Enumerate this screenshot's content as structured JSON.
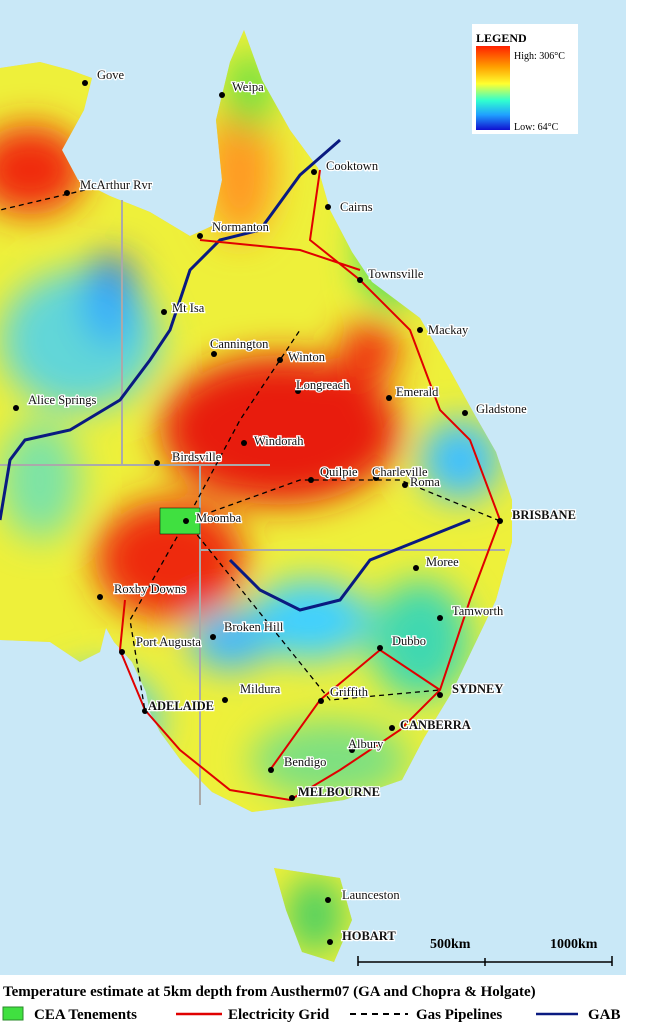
{
  "legend": {
    "title": "LEGEND",
    "high": "High: 306°C",
    "low": "Low: 64°C"
  },
  "cities": [
    "Gove",
    "Weipa",
    "McArthur Rvr",
    "Cooktown",
    "Cairns",
    "Normanton",
    "Townsville",
    "Mt Isa",
    "Mackay",
    "Cannington",
    "Winton",
    "Longreach",
    "Emerald",
    "Alice Springs",
    "Gladstone",
    "Windorah",
    "Birdsville",
    "Quilpie",
    "Charleville",
    "Roma",
    "Moomba",
    "BRISBANE",
    "Moree",
    "Roxby Downs",
    "Tamworth",
    "Broken Hill",
    "Port Augusta",
    "Dubbo",
    "Mildura",
    "Griffith",
    "SYDNEY",
    "ADELAIDE",
    "CANBERRA",
    "Albury",
    "Bendigo",
    "MELBOURNE",
    "Launceston",
    "HOBART"
  ],
  "scale": [
    "500km",
    "1000km"
  ],
  "caption": "Temperature estimate at 5km depth from Austherm07 (GA and Chopra & Holgate)",
  "key": [
    "CEA Tenements",
    "Electricity Grid",
    "Gas Pipelines",
    "GAB"
  ]
}
